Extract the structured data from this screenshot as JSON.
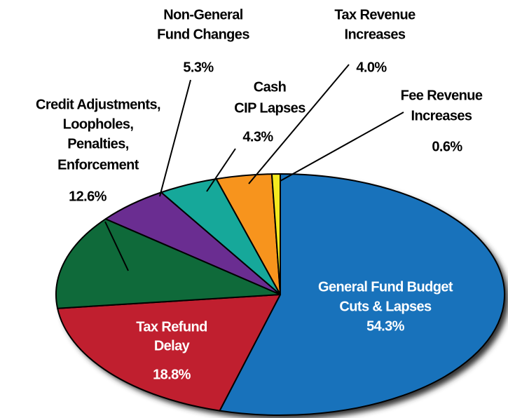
{
  "chart_data": {
    "type": "pie",
    "categories": [
      [
        "General Fund Budget",
        "Cuts & Lapses"
      ],
      [
        "Tax Refund",
        "Delay"
      ],
      [
        "Credit Adjustments,",
        "Loopholes,",
        "Penalties,",
        "Enforcement"
      ],
      [
        "Non-General",
        "Fund Changes"
      ],
      [
        "Cash",
        "CIP Lapses"
      ],
      [
        "Tax Revenue",
        "Increases"
      ],
      [
        "Fee Revenue",
        "Increases"
      ]
    ],
    "values": [
      54.3,
      18.8,
      12.6,
      5.3,
      4.3,
      4.0,
      0.6
    ],
    "value_labels": [
      "54.3%",
      "18.8%",
      "12.6%",
      "5.3%",
      "4.3%",
      "4.0%",
      "0.6%"
    ],
    "colors": [
      "#1872bb",
      "#c01f2f",
      "#0f6a3a",
      "#6a2d91",
      "#16a89a",
      "#f7941d",
      "#f4ea1f"
    ]
  }
}
